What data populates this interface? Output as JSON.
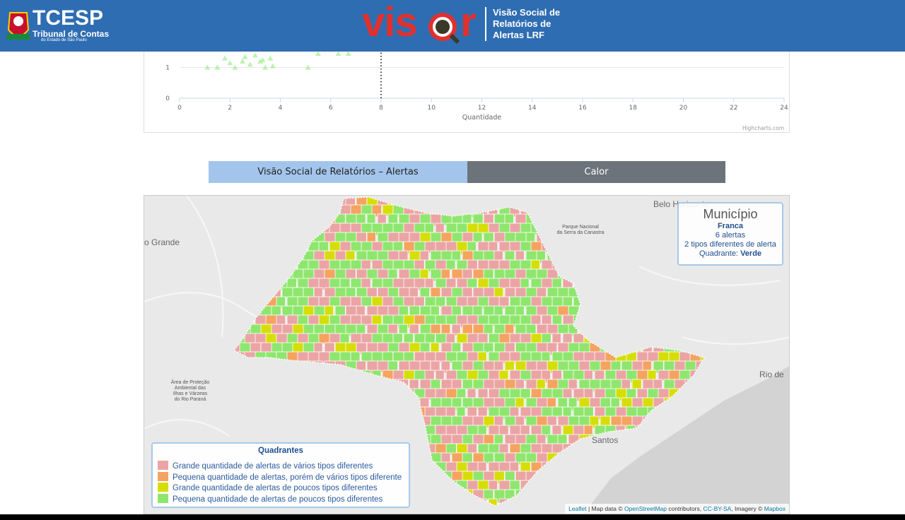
{
  "header": {
    "logo": {
      "name": "TCESP",
      "line1": "Tribunal de Contas",
      "line2": "do Estado de São Paulo"
    },
    "brand_left": "vis",
    "brand_right": "r",
    "tagline": [
      "Visão Social de",
      "Relatórios de",
      "Alertas LRF"
    ]
  },
  "chart_data": {
    "type": "scatter",
    "xlabel": "Quantidade",
    "credit": "Highcharts.com",
    "xlim": [
      0,
      24
    ],
    "xticks": [
      0,
      2,
      4,
      6,
      8,
      10,
      12,
      14,
      16,
      18,
      20,
      22,
      24
    ],
    "ylim": [
      0,
      1.5
    ],
    "yticks": [
      0,
      1
    ],
    "plot_line_x": 8,
    "series": [
      {
        "color": "#90ed7d",
        "x": [
          1.1,
          1.5,
          1.8,
          2.2,
          2.5,
          2.8,
          3.0,
          3.2,
          3.4,
          3.6,
          3.7,
          2.0,
          2.6,
          3.3,
          5.1,
          5.5,
          6.3,
          6.7
        ],
        "values": [
          1.0,
          1.0,
          1.3,
          1.0,
          1.2,
          1.1,
          1.4,
          1.2,
          1.0,
          1.3,
          1.05,
          1.15,
          1.35,
          1.25,
          1.0,
          1.45,
          1.45,
          1.45
        ]
      }
    ]
  },
  "tabs": [
    {
      "label": "Visão Social de Relatórios – Alertas",
      "active": true
    },
    {
      "label": "Calor",
      "active": false
    }
  ],
  "map": {
    "places": [
      "Belo Horizonte",
      "o Grande",
      "Rio de",
      "Santos"
    ],
    "park": [
      "Parque Nacional",
      "da Serra da Canastra"
    ],
    "area": [
      "Área de Proteção",
      "Ambiental das",
      "Ilhas e Várzeas",
      "do Rio Paraná"
    ],
    "info": {
      "title": "Município",
      "name": "Franca",
      "alerts": "6 alertas",
      "types": "2 tipos diferentes de alerta",
      "quadrant_label": "Quadrante:",
      "quadrant": "Verde"
    },
    "legend": {
      "title": "Quadrantes",
      "items": [
        {
          "label": "Grande quantidade de alertas de vários tipos diferentes",
          "color": "#eba4a4"
        },
        {
          "label": "Pequena quantidade de alertas, porém de vários tipos diferente",
          "color": "#f4a460"
        },
        {
          "label": "Grande quantidade de alertas de poucos tipos diferentes",
          "color": "#d6de0a"
        },
        {
          "label": "Pequena quantidade de alertas de poucos tipos diferentes",
          "color": "#8fe66e"
        }
      ]
    },
    "attribution": {
      "leaflet": "Leaflet",
      "text1": " | Map data © ",
      "osm": "OpenStreetMap",
      "text2": " contributors, ",
      "license": "CC-BY-SA",
      "text3": ", Imagery © ",
      "mapbox": "Mapbox"
    }
  }
}
